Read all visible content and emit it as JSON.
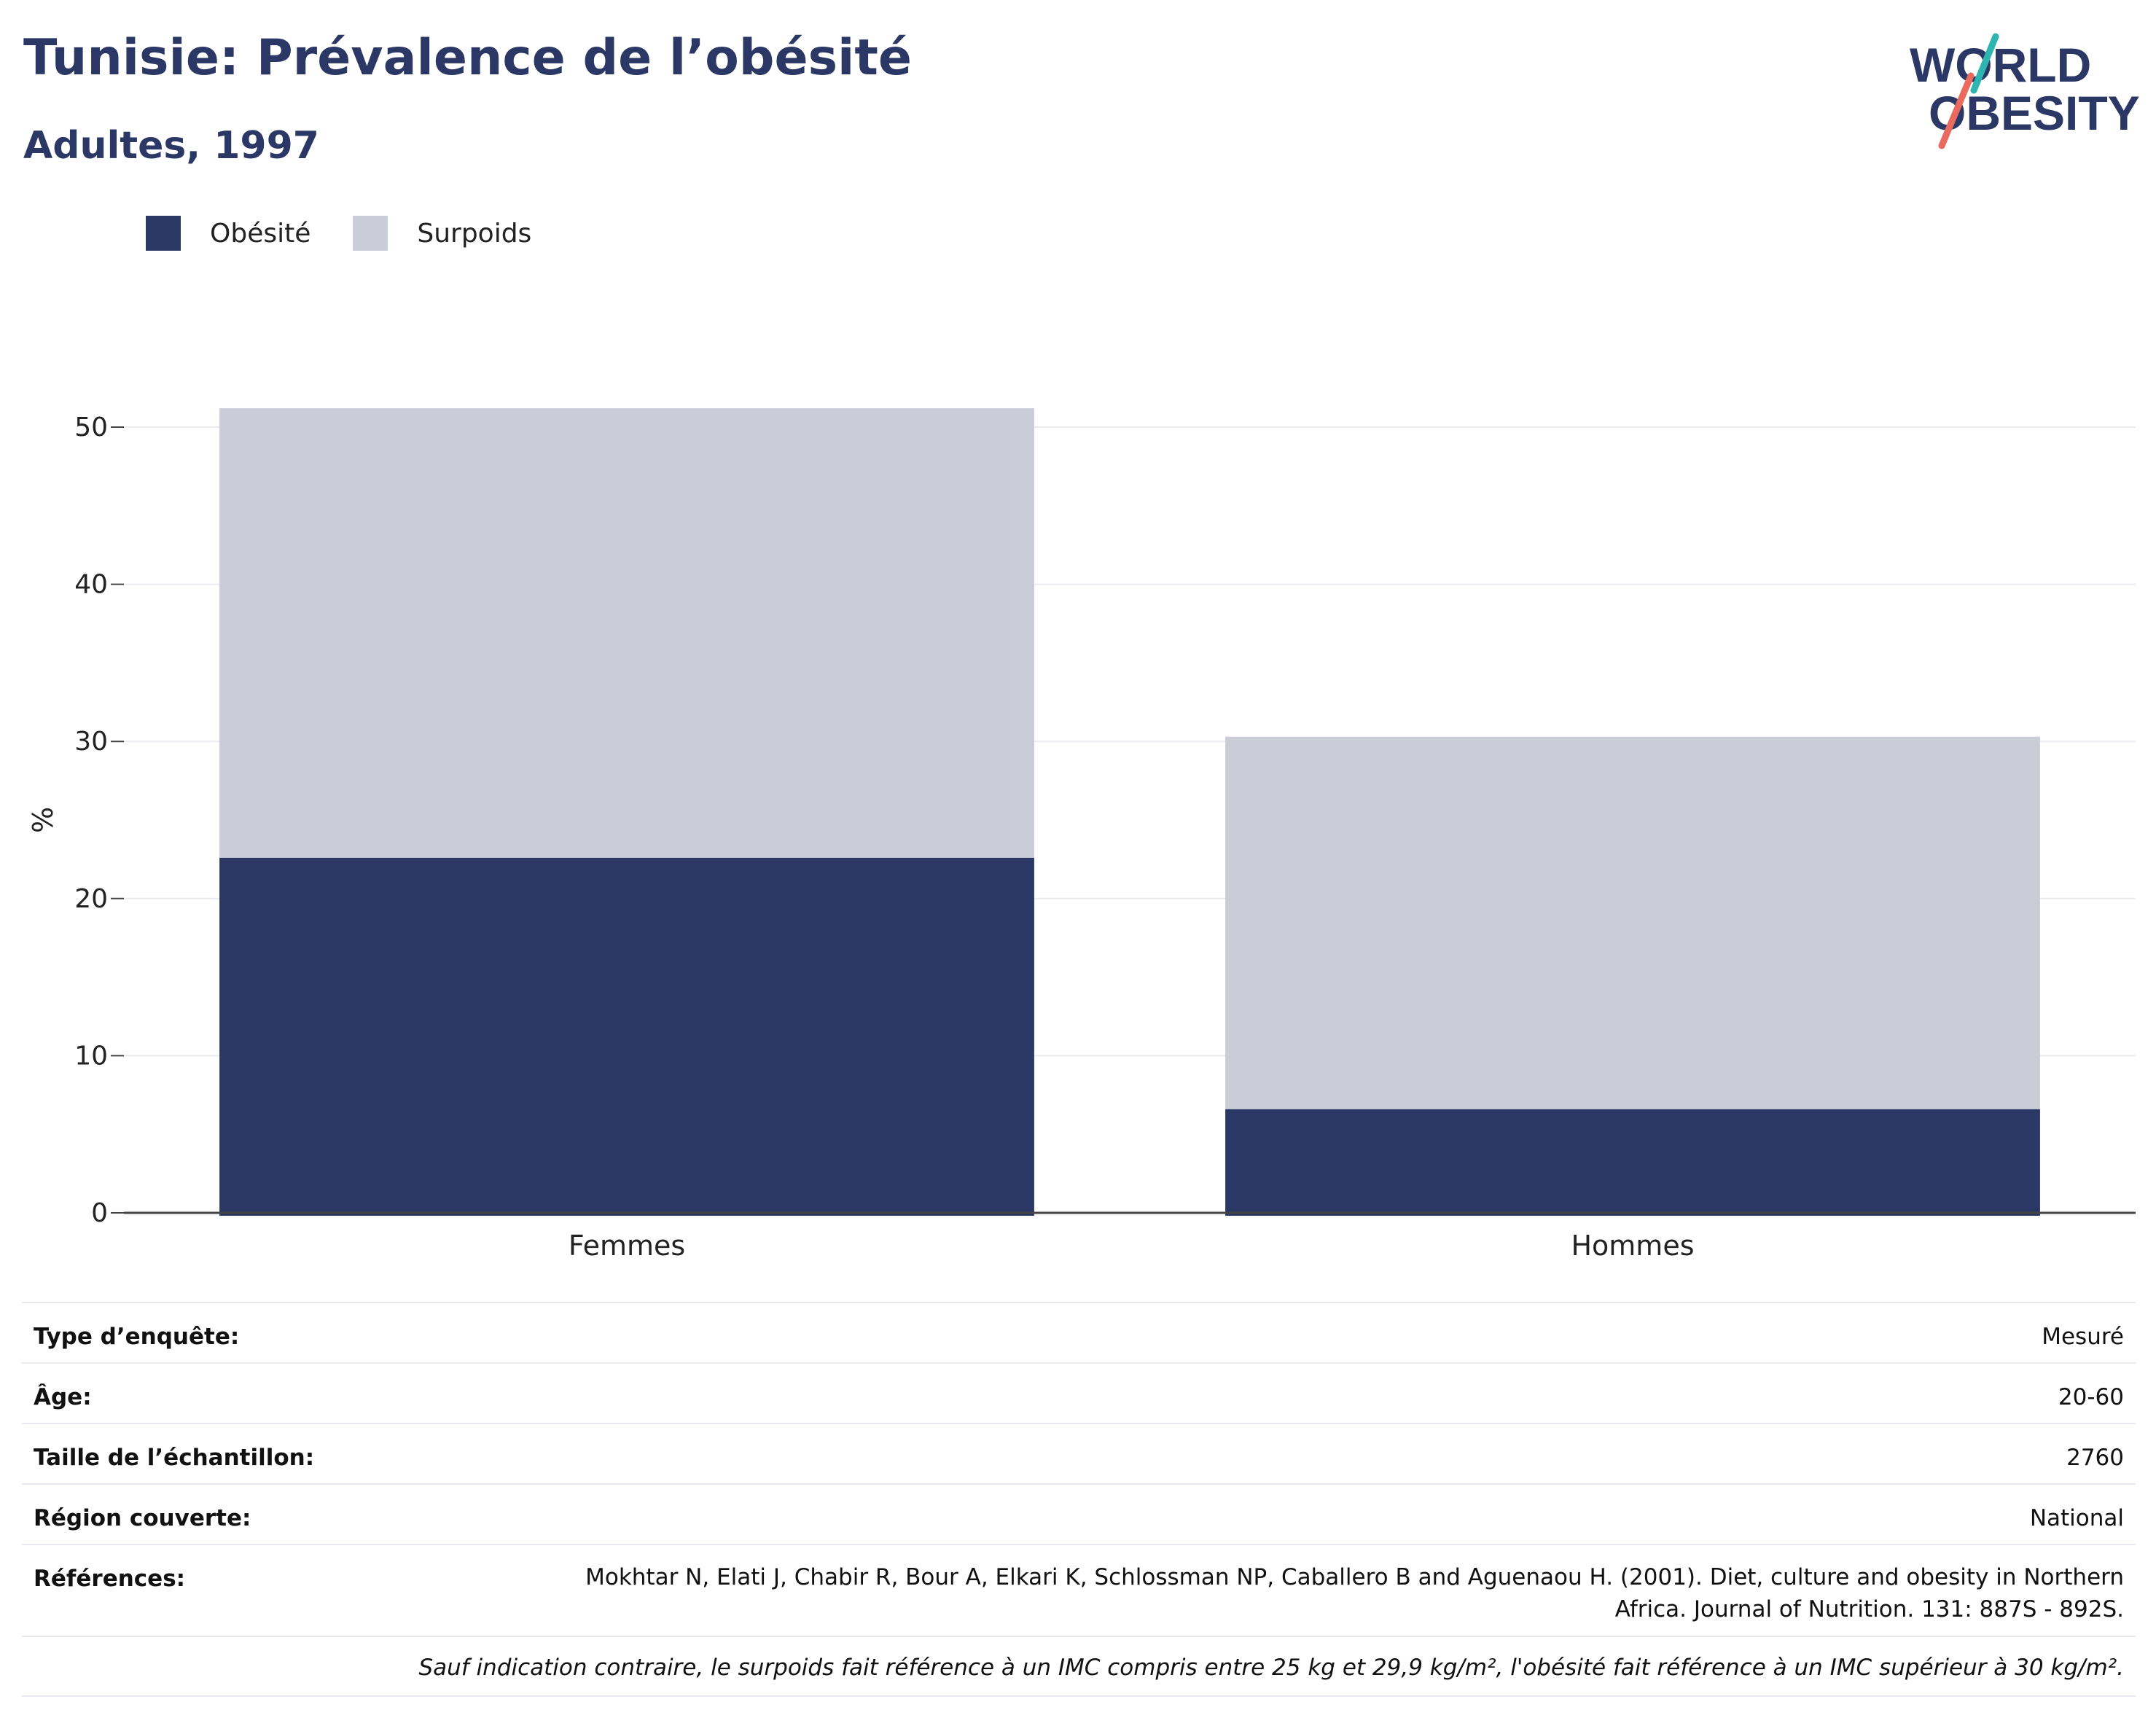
{
  "header": {
    "title": "Tunisie: Prévalence de l’obésité",
    "subtitle": "Adultes, 1997"
  },
  "logo": {
    "line1": "WORLD",
    "line2": "OBESITY"
  },
  "colors": {
    "obesity": "#2b3765",
    "overweight": "#cacdd8",
    "grid": "#ebebf0",
    "axis": "#444444"
  },
  "chart_data": {
    "type": "bar",
    "stacked": true,
    "categories": [
      "Femmes",
      "Hommes"
    ],
    "series": [
      {
        "name": "Obésité",
        "values": [
          22.6,
          6.6
        ]
      },
      {
        "name": "Surpoids",
        "values": [
          28.6,
          23.7
        ]
      }
    ],
    "ylabel": "%",
    "ylim": [
      0,
      55
    ],
    "yticks": [
      0,
      10,
      20,
      30,
      40,
      50
    ],
    "grid": true,
    "legend_position": "top-left"
  },
  "info": {
    "rows": [
      {
        "label": "Type d’enquête:",
        "value": "Mesuré"
      },
      {
        "label": "Âge:",
        "value": "20-60"
      },
      {
        "label": "Taille de l’échantillon:",
        "value": "2760"
      },
      {
        "label": "Région couverte:",
        "value": "National"
      }
    ],
    "references_label": "Références:",
    "references_line1": "Mokhtar N, Elati J, Chabir R, Bour A, Elkari K, Schlossman NP, Caballero B and Aguenaou H. (2001). Diet, culture and obesity in Northern",
    "references_line2": "Africa. Journal of Nutrition. 131: 887S - 892S.",
    "note": "Sauf indication contraire, le surpoids fait référence à un IMC compris entre 25 kg et 29,9 kg/m², l'obésité fait référence à un IMC supérieur à 30 kg/m²."
  }
}
